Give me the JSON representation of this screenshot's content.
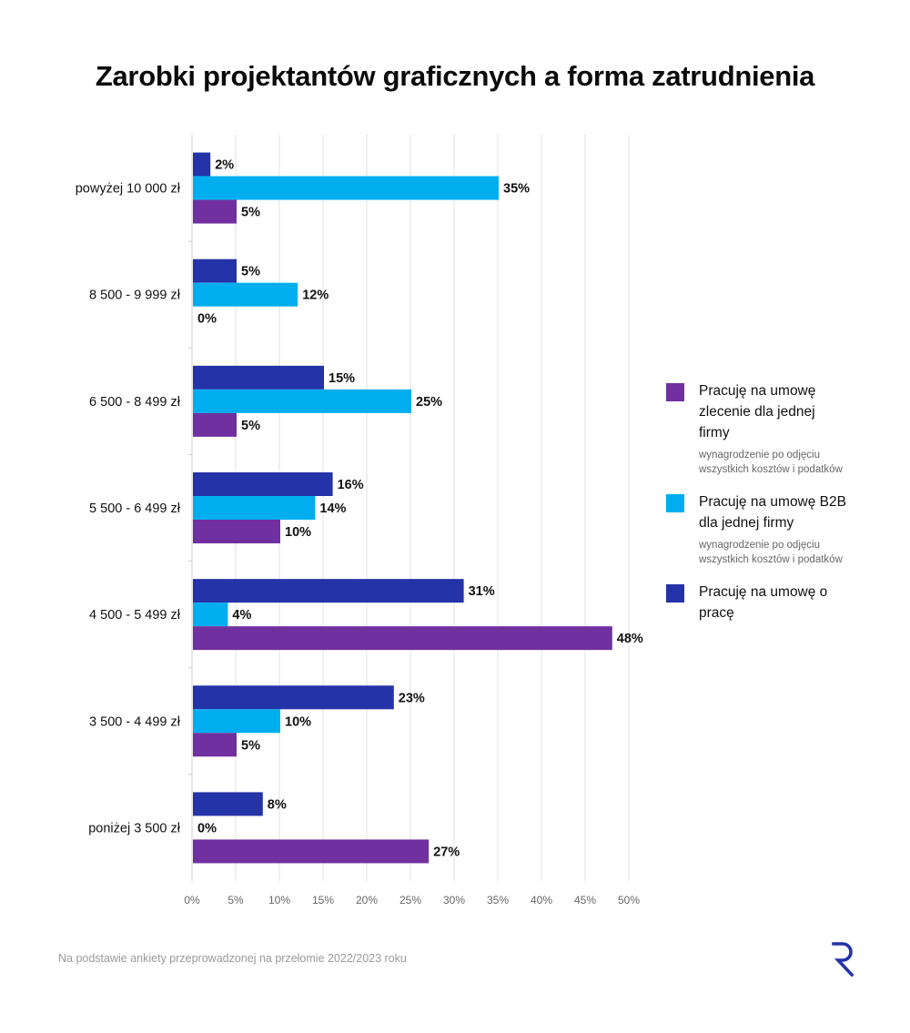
{
  "chart_data": {
    "type": "bar",
    "orientation": "horizontal",
    "title": "Zarobki projektantów graficznych a forma zatrudnienia",
    "categories": [
      "powyżej 10 000 zł",
      "8 500 - 9 999 zł",
      "6 500 - 8 499 zł",
      "5 500 - 6 499 zł",
      "4 500 - 5 499 zł",
      "3 500 - 4 499 zł",
      "poniżej 3 500 zł"
    ],
    "series": [
      {
        "name": "Pracuję na umowę o pracę",
        "color": "#2433a8",
        "values": [
          2,
          5,
          15,
          16,
          31,
          23,
          8
        ]
      },
      {
        "name": "Pracuję na umowę B2B dla jednej firmy",
        "color": "#00aeef",
        "values": [
          35,
          12,
          25,
          14,
          4,
          10,
          0
        ]
      },
      {
        "name": "Pracuję na umowę zlecenie dla jednej firmy",
        "color": "#7030a0",
        "values": [
          5,
          0,
          5,
          10,
          48,
          5,
          27
        ]
      }
    ],
    "xlim": [
      0,
      50
    ],
    "xticks": [
      0,
      5,
      10,
      15,
      20,
      25,
      30,
      35,
      40,
      45,
      50
    ],
    "tick_suffix": "%",
    "grid": true,
    "legend_position": "right"
  },
  "legend": [
    {
      "color": "#7030a0",
      "label": "Pracuję na umowę zlecenie dla jednej firmy",
      "sub": "wynagrodzenie po odjęciu wszystkich kosztów i podatków"
    },
    {
      "color": "#00aeef",
      "label": "Pracuję na umowę B2B dla jednej firmy",
      "sub": "wynagrodzenie po odjęciu wszystkich kosztów i podatków"
    },
    {
      "color": "#2433a8",
      "label": "Pracuję na umowę o pracę",
      "sub": ""
    }
  ],
  "source": "Na podstawie ankiety przeprowadzonej na przełomie 2022/2023 roku",
  "logo_icon": "r-logo-icon",
  "logo_color": "#2433a8"
}
